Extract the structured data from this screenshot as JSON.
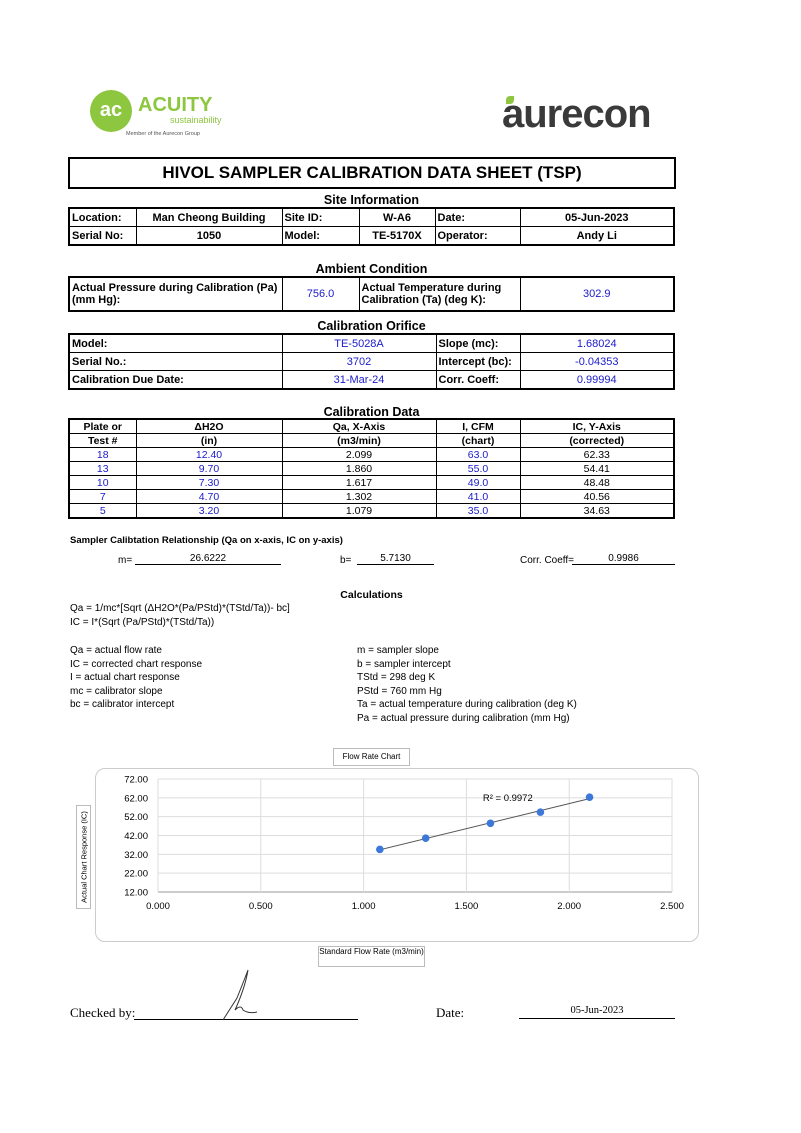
{
  "logos": {
    "left": {
      "text": "ACUITY",
      "sub": "sustainability",
      "tagline": "Member of the Aurecon Group",
      "color": "#8dc63f"
    },
    "right": {
      "text": "aurecon",
      "color": "#3a3a3a",
      "accent": "#8dc63f"
    }
  },
  "title": "HIVOL SAMPLER CALIBRATION  DATA SHEET (TSP)",
  "site": {
    "heading": "Site Information",
    "location_label": "Location:",
    "location": "Man Cheong Building",
    "site_id_label": "Site ID:",
    "site_id": "W-A6",
    "date_label": "Date:",
    "date": "05-Jun-2023",
    "serial_label": "Serial No:",
    "serial": "1050",
    "model_label": "Model:",
    "model": "TE-5170X",
    "operator_label": "Operator:",
    "operator": "Andy Li"
  },
  "ambient": {
    "heading": "Ambient Condition",
    "pressure_label": "Actual Pressure during Calibration (Pa) (mm Hg):",
    "pressure": "756.0",
    "temp_label": "Actual Temperature during Calibration (Ta) (deg K):",
    "temp": "302.9"
  },
  "orifice": {
    "heading": "Calibration Orifice",
    "model_label": "Model:",
    "model": "TE-5028A",
    "slope_label": "Slope (mc):",
    "slope": "1.68024",
    "serial_label": "Serial No.:",
    "serial": "3702",
    "intercept_label": "Intercept (bc):",
    "intercept": "-0.04353",
    "due_label": "Calibration Due Date:",
    "due": "31-Mar-24",
    "corr_label": "Corr. Coeff:",
    "corr": "0.99994"
  },
  "caldata": {
    "heading": "Calibration Data",
    "headers1": [
      "Plate or",
      "ΔH2O",
      "Qa, X-Axis",
      "I, CFM",
      "IC, Y-Axis"
    ],
    "headers2": [
      "Test #",
      "(in)",
      "(m3/min)",
      "(chart)",
      "(corrected)"
    ],
    "rows": [
      [
        "18",
        "12.40",
        "2.099",
        "63.0",
        "62.33"
      ],
      [
        "13",
        "9.70",
        "1.860",
        "55.0",
        "54.41"
      ],
      [
        "10",
        "7.30",
        "1.617",
        "49.0",
        "48.48"
      ],
      [
        "7",
        "4.70",
        "1.302",
        "41.0",
        "40.56"
      ],
      [
        "5",
        "3.20",
        "1.079",
        "35.0",
        "34.63"
      ]
    ]
  },
  "relationship": {
    "heading": "Sampler Calibtation Relationship (Qa on x-axis, IC on y-axis)",
    "m_label": "m=",
    "m": "26.6222",
    "b_label": "b=",
    "b": "5.7130",
    "corr_label": "Corr. Coeff=",
    "corr": "0.9986"
  },
  "calculations": {
    "heading": "Calculations",
    "formula1": "Qa = 1/mc*[Sqrt (ΔH2O*(Pa/PStd)*(TStd/Ta))- bc]",
    "formula2": "IC = I*(Sqrt (Pa/PStd)*(TStd/Ta))",
    "left": [
      "Qa = actual flow rate",
      "IC = corrected chart response",
      "I = actual chart response",
      "mc  = calibrator slope",
      "bc  = calibrator intercept"
    ],
    "right": [
      "m = sampler slope",
      "b  = sampler intercept",
      "TStd = 298 deg K",
      "PStd = 760 mm Hg",
      "Ta = actual temperature during calibration (deg K)",
      "Pa = actual pressure during calibration (mm Hg)"
    ]
  },
  "chart_data": {
    "type": "scatter",
    "title": "Flow Rate Chart",
    "xlabel": "Standard Flow Rate (m3/min)",
    "ylabel": "Actual Chart Response (IC)",
    "xlim": [
      0,
      2.5
    ],
    "ylim": [
      12,
      72
    ],
    "xticks": [
      "0.000",
      "0.500",
      "1.000",
      "1.500",
      "2.000",
      "2.500"
    ],
    "yticks": [
      "12.00",
      "22.00",
      "32.00",
      "42.00",
      "52.00",
      "62.00",
      "72.00"
    ],
    "x": [
      2.099,
      1.86,
      1.617,
      1.302,
      1.079
    ],
    "y": [
      62.33,
      54.41,
      48.48,
      40.56,
      34.63
    ],
    "trendline": {
      "slope": 26.6222,
      "intercept": 5.713,
      "label": "R² = 0.9972"
    },
    "grid": true,
    "point_color": "#3c78d8"
  },
  "footer": {
    "checked_label": "Checked by:",
    "date_label": "Date:",
    "date": "05-Jun-2023"
  }
}
